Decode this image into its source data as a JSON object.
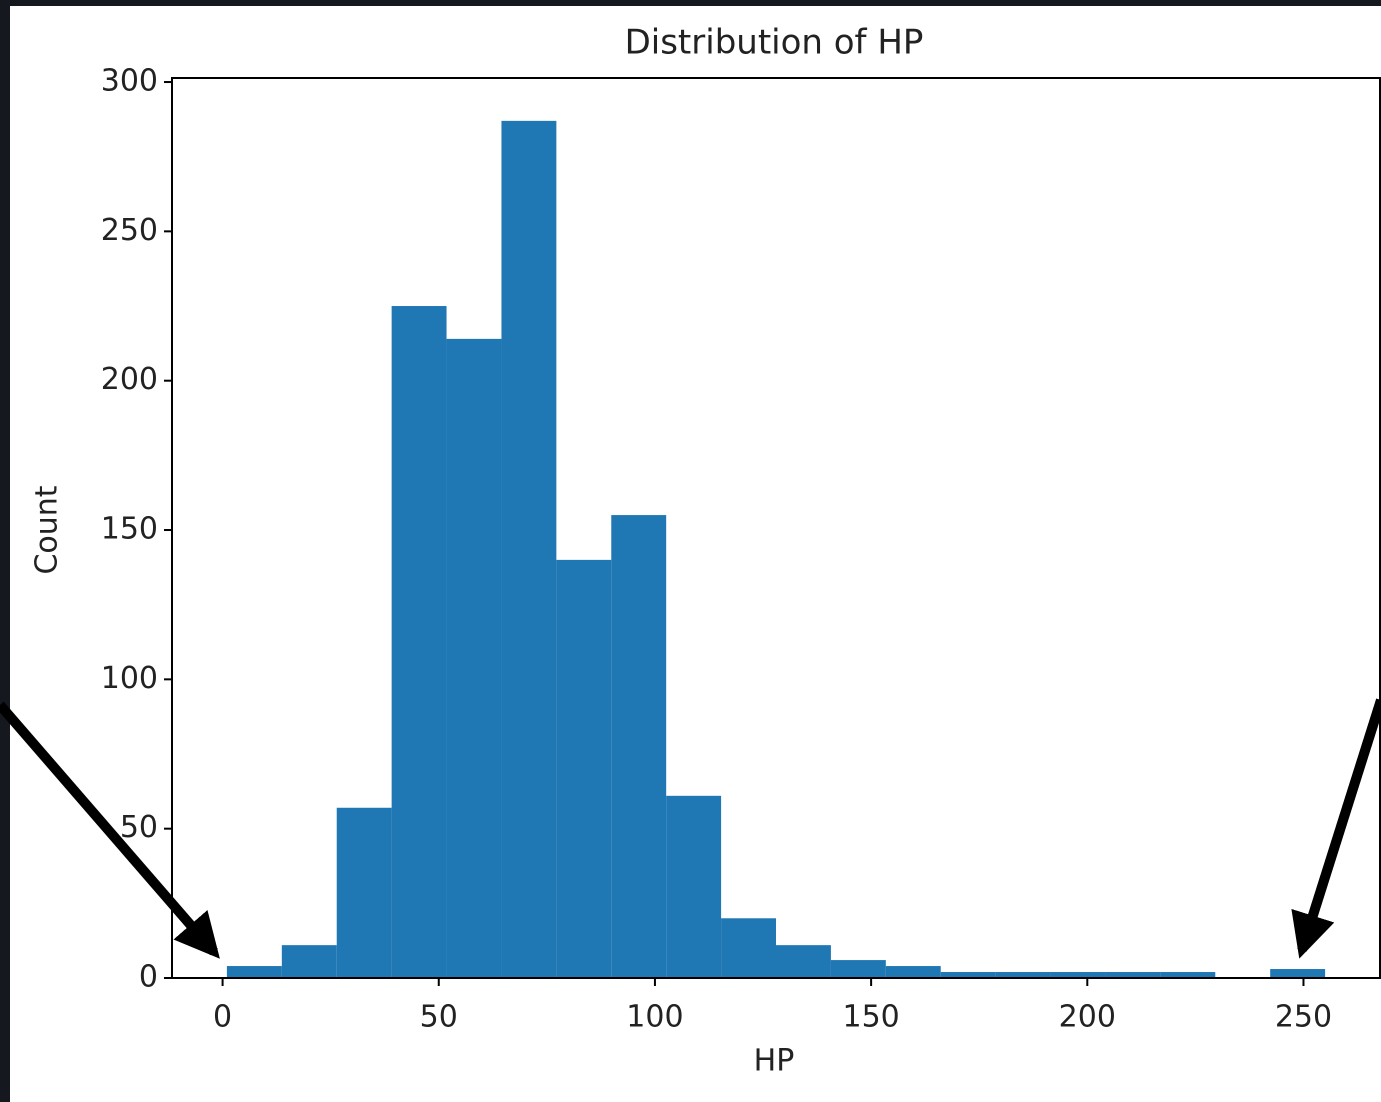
{
  "chart_data": {
    "type": "histogram",
    "title": "Distribution of HP",
    "x_label": "HP",
    "y_label": "Count",
    "bins": [
      1,
      13.7,
      26.4,
      39.1,
      51.8,
      64.5,
      77.2,
      89.9,
      102.6,
      115.3,
      128,
      140.7,
      153.4,
      166.1,
      178.8,
      191.5,
      204.2,
      216.9,
      229.6,
      242.3,
      255
    ],
    "counts": [
      4,
      11,
      57,
      225,
      214,
      287,
      140,
      155,
      61,
      20,
      11,
      6,
      4,
      2,
      2,
      2,
      2,
      2,
      0,
      3
    ],
    "color": "#1f77b4",
    "xlim": [
      -11.7,
      267.7
    ],
    "xticks": [
      0,
      50,
      100,
      150,
      200,
      250
    ],
    "ylim": [
      0,
      301.35
    ],
    "yticks": [
      0,
      50,
      100,
      150,
      200,
      250,
      300
    ],
    "grid": false
  }
}
